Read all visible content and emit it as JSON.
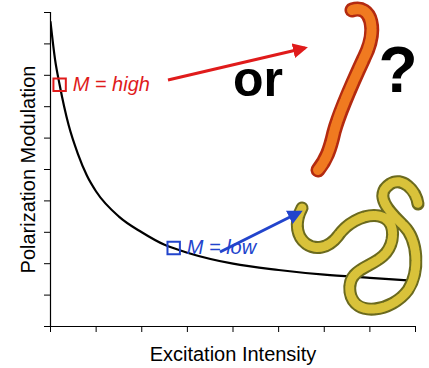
{
  "chart_data": {
    "type": "line",
    "x_label": "Excitation Intensity",
    "y_label": "Polarization Modulation",
    "x": [
      0,
      0.1,
      0.2,
      0.3,
      0.4,
      0.6,
      0.8,
      1,
      1.5,
      2,
      2.5,
      3,
      4,
      5,
      6,
      7,
      8
    ],
    "values": [
      9.7,
      8.5,
      7.7,
      7.0,
      6.4,
      5.5,
      4.8,
      4.3,
      3.5,
      3.0,
      2.6,
      2.35,
      2.0,
      1.8,
      1.65,
      1.55,
      1.45
    ],
    "color": "#000000",
    "xlim": [
      0,
      8
    ],
    "ylim": [
      0,
      10
    ],
    "xticks": [
      0,
      1,
      2,
      3,
      4,
      5,
      6,
      7,
      8
    ],
    "yticks": [
      0,
      1,
      2,
      3,
      4,
      5,
      6,
      7,
      8,
      9,
      10
    ],
    "tick_labels": false,
    "grid": false,
    "annotations": [
      {
        "text": "M = high",
        "x": 0.2,
        "y": 7.7,
        "color": "#e01b1b",
        "marker": "square"
      },
      {
        "text": "M = low",
        "x": 2.7,
        "y": 2.5,
        "color": "#2244cc",
        "marker": "square"
      },
      {
        "text": "or"
      },
      {
        "text": "?"
      }
    ]
  }
}
